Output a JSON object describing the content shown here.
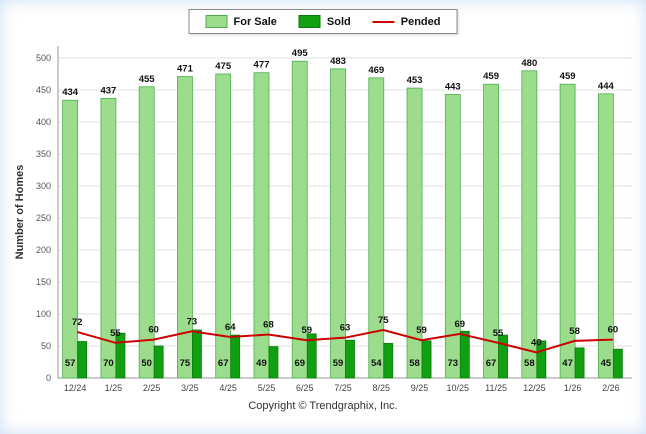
{
  "legend": {
    "items": [
      {
        "label": "For Sale",
        "type": "box",
        "color": "#9CDD8D",
        "border": "#4FAE4F"
      },
      {
        "label": "Sold",
        "type": "box",
        "color": "#11A011",
        "border": "#0B7A0B"
      },
      {
        "label": "Pended",
        "type": "line",
        "color": "#CC0000"
      }
    ]
  },
  "footer": "Copyright © Trendgraphix, Inc.",
  "chart_data": {
    "type": "bar",
    "title": "",
    "xlabel": "",
    "ylabel": "Number of Homes",
    "ylim": [
      0,
      500
    ],
    "ytick_step": 50,
    "grid": true,
    "legend_position": "top",
    "categories": [
      "12/24",
      "1/25",
      "2/25",
      "3/25",
      "4/25",
      "5/25",
      "6/25",
      "7/25",
      "8/25",
      "9/25",
      "10/25",
      "11/25",
      "12/25",
      "1/26",
      "2/26"
    ],
    "series": [
      {
        "name": "For Sale",
        "type": "bar",
        "color": "#9CDD8D",
        "border": "#4FAE4F",
        "values": [
          434,
          437,
          455,
          471,
          475,
          477,
          495,
          483,
          469,
          453,
          443,
          459,
          480,
          459,
          444
        ]
      },
      {
        "name": "Sold",
        "type": "bar",
        "color": "#11A011",
        "border": "#0B7A0B",
        "values": [
          57,
          70,
          50,
          75,
          67,
          49,
          69,
          59,
          54,
          58,
          73,
          67,
          58,
          47,
          45
        ]
      },
      {
        "name": "Pended",
        "type": "line",
        "color": "#CC0000",
        "values": [
          72,
          55,
          60,
          73,
          64,
          68,
          59,
          63,
          75,
          59,
          69,
          55,
          40,
          58,
          60
        ]
      }
    ]
  }
}
